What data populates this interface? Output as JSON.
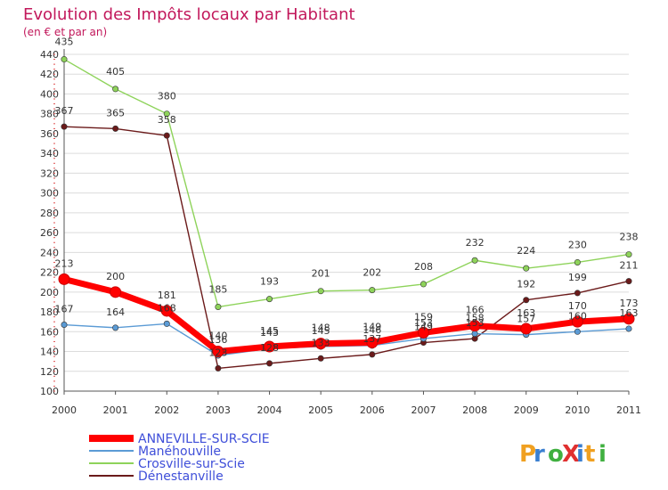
{
  "chart_data": {
    "type": "line",
    "title": "Evolution des Impôts locaux par Habitant",
    "subtitle": "(en € et par an)",
    "xlabel": "",
    "ylabel": "",
    "categories": [
      "2000",
      "2001",
      "2002",
      "2003",
      "2004",
      "2005",
      "2006",
      "2007",
      "2008",
      "2009",
      "2010",
      "2011"
    ],
    "ylim": [
      100,
      440
    ],
    "yticks": [
      100,
      120,
      140,
      160,
      180,
      200,
      220,
      240,
      260,
      280,
      300,
      320,
      340,
      360,
      380,
      400,
      420,
      440
    ],
    "series": [
      {
        "name": "ANNEVILLE-SUR-SCIE",
        "color": "#ff0000",
        "values": [
          213,
          200,
          181,
          140,
          145,
          148,
          149,
          159,
          166,
          163,
          170,
          173
        ],
        "labels": [
          "213",
          "200",
          "181",
          "140",
          "145",
          "148",
          "149",
          "159",
          "166",
          "163",
          "170",
          "173"
        ]
      },
      {
        "name": "Manéhouville",
        "color": "#5b9bd5",
        "values": [
          167,
          164,
          168,
          136,
          143,
          145,
          146,
          153,
          158,
          157,
          160,
          163
        ],
        "labels": [
          "167",
          "164",
          "168",
          "136",
          "143",
          "145",
          "146",
          "153",
          "158",
          "157",
          "160",
          "163"
        ]
      },
      {
        "name": "Crosville-sur-Scie",
        "color": "#8ed35a",
        "values": [
          435,
          405,
          380,
          185,
          193,
          201,
          202,
          208,
          232,
          224,
          230,
          238
        ],
        "labels": [
          "435",
          "405",
          "380",
          "185",
          "193",
          "201",
          "202",
          "208",
          "232",
          "224",
          "230",
          "238"
        ]
      },
      {
        "name": "Dénestanville",
        "color": "#6b1a1a",
        "values": [
          367,
          365,
          358,
          123,
          128,
          133,
          137,
          149,
          153,
          192,
          199,
          211
        ],
        "labels": [
          "367",
          "365",
          "358",
          "123",
          "128",
          "133",
          "137",
          "149",
          "153",
          "192",
          "199",
          "211"
        ]
      }
    ]
  },
  "brand": {
    "text": "ProXiti"
  }
}
